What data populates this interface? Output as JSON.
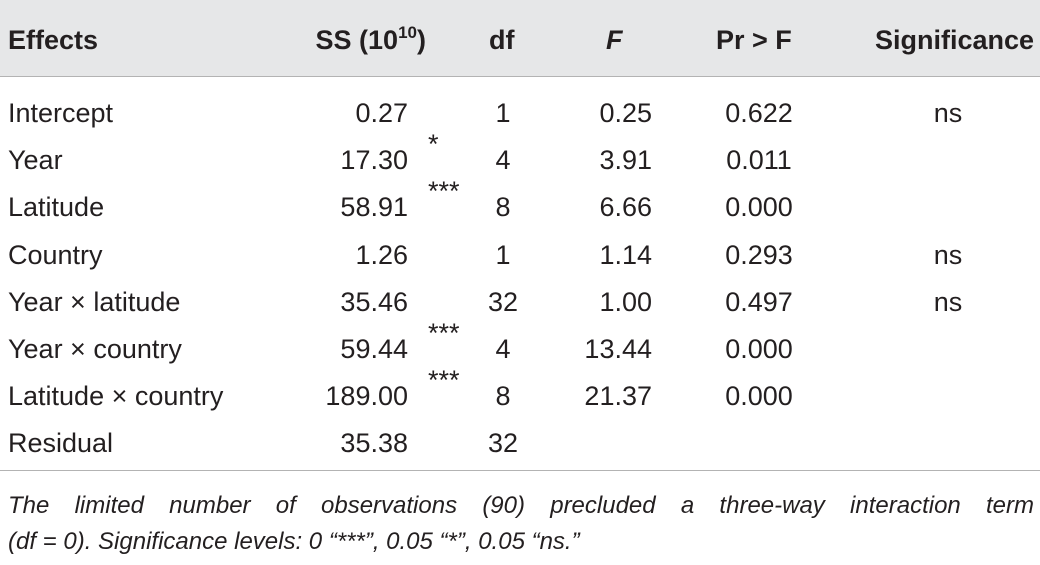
{
  "table": {
    "headers": {
      "effects": "Effects",
      "ss_prefix": "SS (10",
      "ss_exp": "10",
      "ss_suffix": ")",
      "df": "df",
      "f": "F",
      "pr": "Pr > F",
      "significance": "Significance"
    },
    "rows": [
      {
        "effect": "Intercept",
        "ss": "0.27",
        "df": "1",
        "f": "0.25",
        "pr": "0.622",
        "sig": "ns"
      },
      {
        "effect": "Year",
        "ss": "17.30",
        "df": "4",
        "f": "3.91",
        "pr": "0.011",
        "sig": "*"
      },
      {
        "effect": "Latitude",
        "ss": "58.91",
        "df": "8",
        "f": "6.66",
        "pr": "0.000",
        "sig": "***"
      },
      {
        "effect": "Country",
        "ss": "1.26",
        "df": "1",
        "f": "1.14",
        "pr": "0.293",
        "sig": "ns"
      },
      {
        "effect": "Year × latitude",
        "ss": "35.46",
        "df": "32",
        "f": "1.00",
        "pr": "0.497",
        "sig": "ns"
      },
      {
        "effect": "Year × country",
        "ss": "59.44",
        "df": "4",
        "f": "13.44",
        "pr": "0.000",
        "sig": "***"
      },
      {
        "effect": "Latitude × country",
        "ss": "189.00",
        "df": "8",
        "f": "21.37",
        "pr": "0.000",
        "sig": "***"
      },
      {
        "effect": "Residual",
        "ss": "35.38",
        "df": "32",
        "f": "",
        "pr": "",
        "sig": ""
      }
    ]
  },
  "footnote": {
    "line1": "The limited number of observations (90) precluded a three-way interaction term",
    "line2": "(df = 0). Significance levels: 0 “***”, 0.05 “*”, 0.05 “ns.”"
  }
}
